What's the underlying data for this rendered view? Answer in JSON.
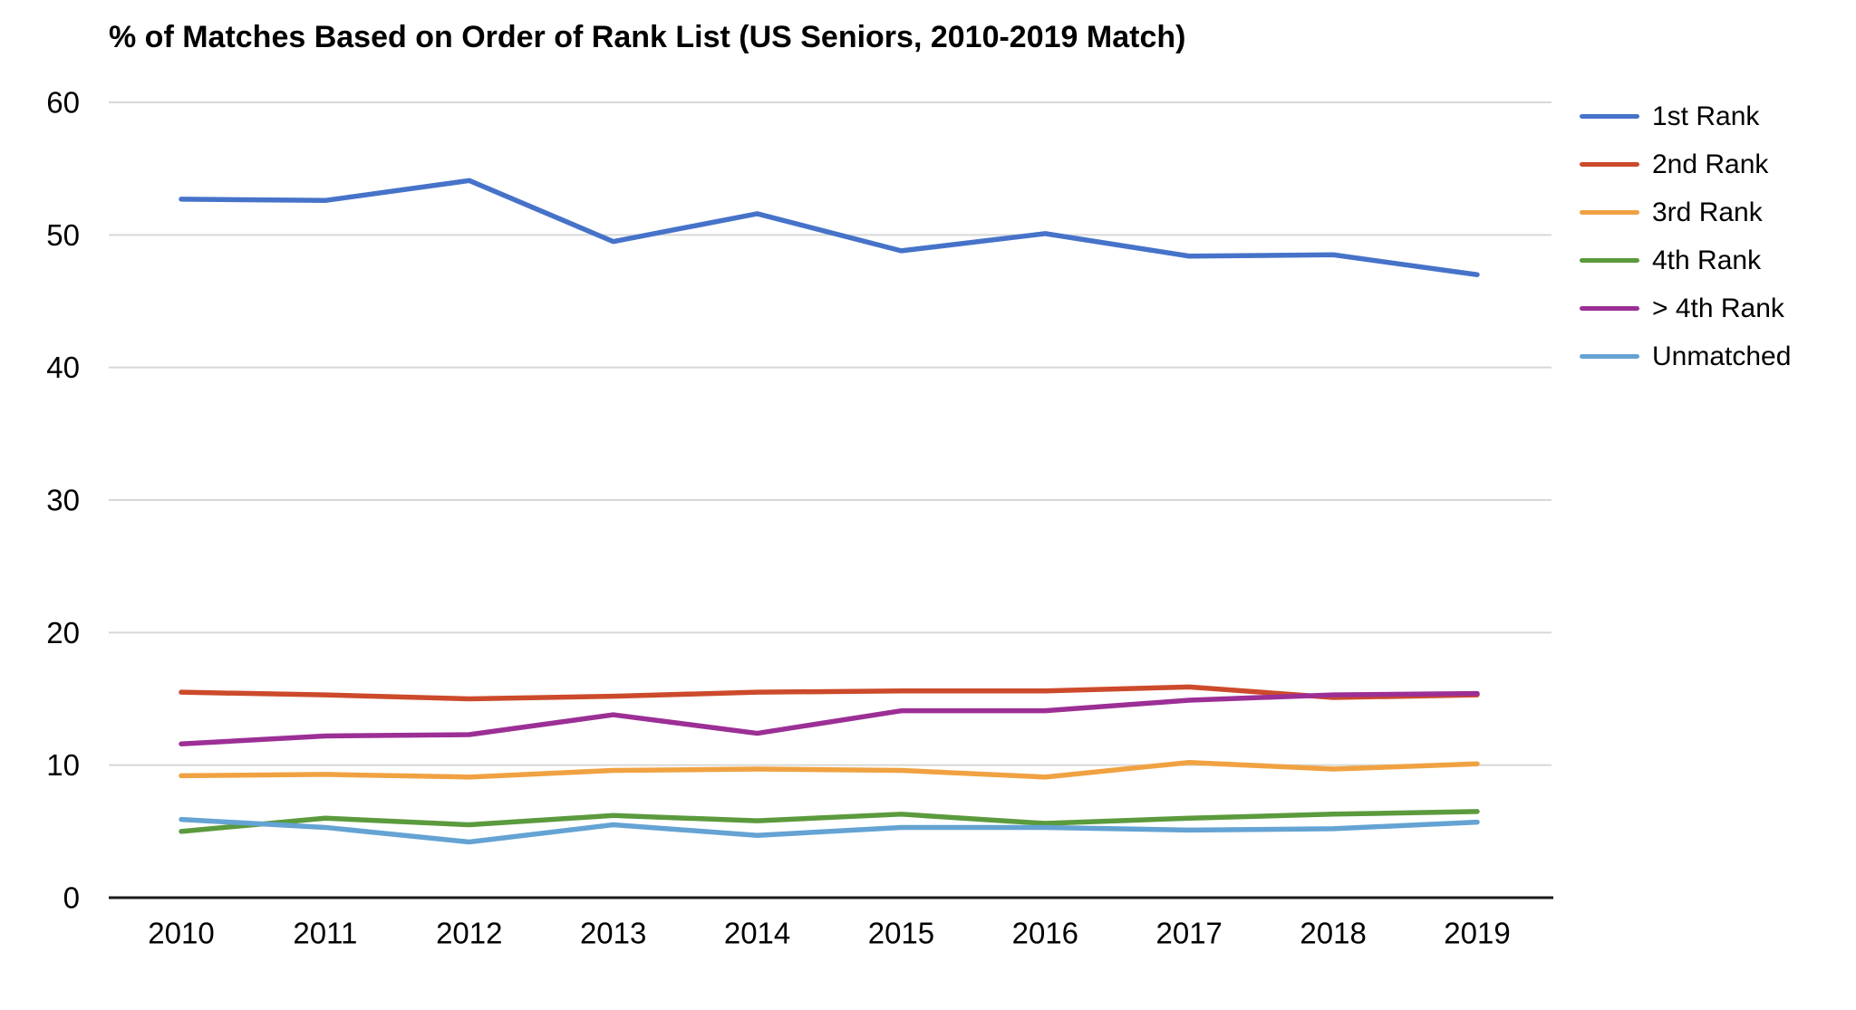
{
  "chart_data": {
    "type": "line",
    "title": "% of Matches Based on Order of Rank List (US Seniors, 2010-2019 Match)",
    "x_categories": [
      "2010",
      "2011",
      "2012",
      "2013",
      "2014",
      "2015",
      "2016",
      "2017",
      "2018",
      "2019"
    ],
    "series": [
      {
        "name": "1st Rank",
        "color": "#4673C9",
        "values": [
          52.7,
          52.6,
          54.1,
          49.5,
          51.6,
          48.8,
          50.1,
          48.4,
          48.5,
          47.0
        ]
      },
      {
        "name": "2nd Rank",
        "color": "#CC4A2B",
        "values": [
          15.5,
          15.3,
          15.0,
          15.2,
          15.5,
          15.6,
          15.6,
          15.9,
          15.1,
          15.3
        ]
      },
      {
        "name": "3rd Rank",
        "color": "#F0A242",
        "values": [
          9.2,
          9.3,
          9.1,
          9.6,
          9.7,
          9.6,
          9.1,
          10.2,
          9.7,
          10.1
        ]
      },
      {
        "name": "4th Rank",
        "color": "#5B9A3D",
        "values": [
          5.0,
          6.0,
          5.5,
          6.2,
          5.8,
          6.3,
          5.6,
          6.0,
          6.3,
          6.5
        ]
      },
      {
        "name": "> 4th Rank",
        "color": "#9C2F95",
        "values": [
          11.6,
          12.2,
          12.3,
          13.8,
          12.4,
          14.1,
          14.1,
          14.9,
          15.3,
          15.4
        ]
      },
      {
        "name": "Unmatched",
        "color": "#64A3D3",
        "values": [
          5.9,
          5.3,
          4.2,
          5.5,
          4.7,
          5.3,
          5.3,
          5.1,
          5.2,
          5.7
        ]
      }
    ],
    "ylim": [
      0,
      60
    ],
    "ytick_step": 10,
    "ytick_labels": [
      "0",
      "10",
      "20",
      "30",
      "40",
      "50",
      "60"
    ],
    "grid": "horizontal",
    "grid_color": "#D8D8D8",
    "axis_color": "#1A1A1A",
    "legend_position": "right"
  }
}
